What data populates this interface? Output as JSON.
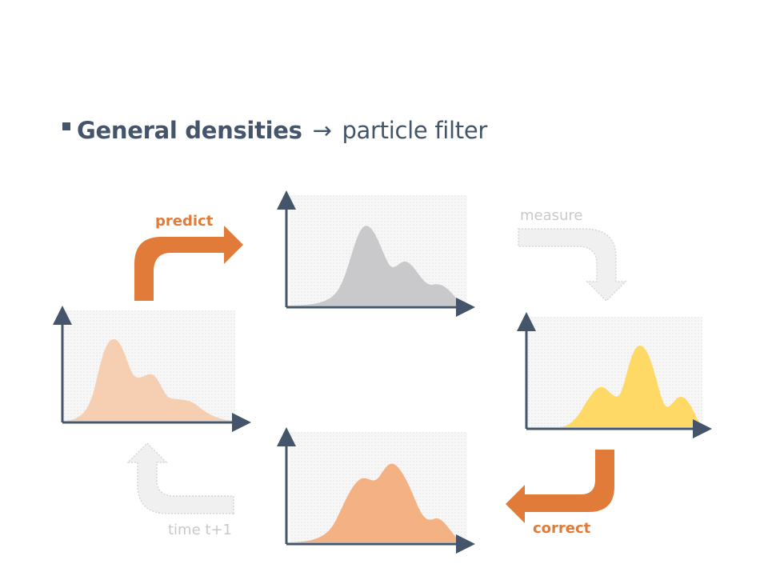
{
  "heading": {
    "bold_text": "General densities",
    "arrow": "→",
    "rest_text": "particle filter"
  },
  "steps": {
    "predict": "predict",
    "measure": "measure",
    "correct": "correct",
    "time": "time t+1"
  },
  "colors": {
    "axis": "#44546a",
    "active_arrow": "#e07b39",
    "faded_arrow": "#f0f0f0",
    "faded_arrow_stroke": "#d6d6d6",
    "prior_density": "#f6cfb2",
    "predicted_density": "#c9c9cc",
    "likelihood_density": "#ffd966",
    "posterior_density": "#f4b183"
  }
}
